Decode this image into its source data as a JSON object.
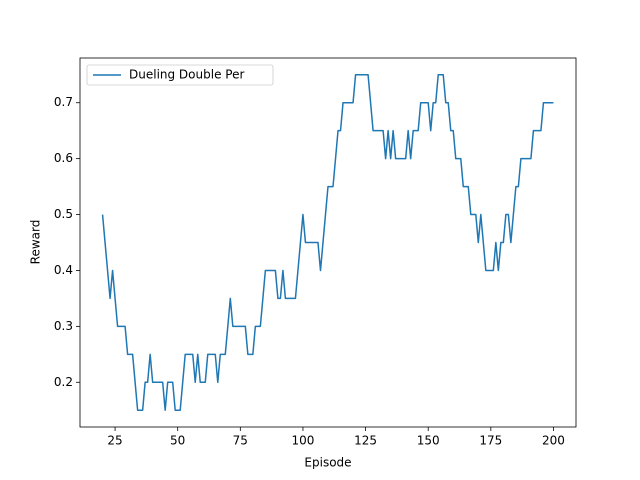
{
  "chart_data": {
    "type": "line",
    "xlabel": "Episode",
    "ylabel": "Reward",
    "x": [
      20,
      21,
      22,
      23,
      24,
      25,
      26,
      27,
      28,
      29,
      30,
      31,
      32,
      33,
      34,
      35,
      36,
      37,
      38,
      39,
      40,
      41,
      42,
      43,
      44,
      45,
      46,
      47,
      48,
      49,
      50,
      51,
      52,
      53,
      54,
      55,
      56,
      57,
      58,
      59,
      60,
      61,
      62,
      63,
      64,
      65,
      66,
      67,
      68,
      69,
      70,
      71,
      72,
      73,
      74,
      75,
      76,
      77,
      78,
      79,
      80,
      81,
      82,
      83,
      84,
      85,
      86,
      87,
      88,
      89,
      90,
      91,
      92,
      93,
      94,
      95,
      96,
      97,
      98,
      99,
      100,
      101,
      102,
      103,
      104,
      105,
      106,
      107,
      108,
      109,
      110,
      111,
      112,
      113,
      114,
      115,
      116,
      117,
      118,
      119,
      120,
      121,
      122,
      123,
      124,
      125,
      126,
      127,
      128,
      129,
      130,
      131,
      132,
      133,
      134,
      135,
      136,
      137,
      138,
      139,
      140,
      141,
      142,
      143,
      144,
      145,
      146,
      147,
      148,
      149,
      150,
      151,
      152,
      153,
      154,
      155,
      156,
      157,
      158,
      159,
      160,
      161,
      162,
      163,
      164,
      165,
      166,
      167,
      168,
      169,
      170,
      171,
      172,
      173,
      174,
      175,
      176,
      177,
      178,
      179,
      180,
      181,
      182,
      183,
      184,
      185,
      186,
      187,
      188,
      189,
      190,
      191,
      192,
      193,
      194,
      195,
      196,
      197,
      198,
      199,
      200
    ],
    "series": [
      {
        "name": "Dueling Double Per",
        "color": "#1f77b4",
        "values": [
          0.5,
          0.45,
          0.4,
          0.35,
          0.4,
          0.35,
          0.3,
          0.3,
          0.3,
          0.3,
          0.25,
          0.25,
          0.25,
          0.2,
          0.15,
          0.15,
          0.15,
          0.2,
          0.2,
          0.25,
          0.2,
          0.2,
          0.2,
          0.2,
          0.2,
          0.15,
          0.2,
          0.2,
          0.2,
          0.15,
          0.15,
          0.15,
          0.2,
          0.25,
          0.25,
          0.25,
          0.25,
          0.2,
          0.25,
          0.2,
          0.2,
          0.2,
          0.25,
          0.25,
          0.25,
          0.25,
          0.2,
          0.25,
          0.25,
          0.25,
          0.3,
          0.35,
          0.3,
          0.3,
          0.3,
          0.3,
          0.3,
          0.3,
          0.25,
          0.25,
          0.25,
          0.3,
          0.3,
          0.3,
          0.35,
          0.4,
          0.4,
          0.4,
          0.4,
          0.4,
          0.35,
          0.35,
          0.4,
          0.35,
          0.35,
          0.35,
          0.35,
          0.35,
          0.4,
          0.45,
          0.5,
          0.45,
          0.45,
          0.45,
          0.45,
          0.45,
          0.45,
          0.4,
          0.45,
          0.5,
          0.55,
          0.55,
          0.55,
          0.6,
          0.65,
          0.65,
          0.7,
          0.7,
          0.7,
          0.7,
          0.7,
          0.75,
          0.75,
          0.75,
          0.75,
          0.75,
          0.75,
          0.7,
          0.65,
          0.65,
          0.65,
          0.65,
          0.65,
          0.6,
          0.65,
          0.6,
          0.65,
          0.6,
          0.6,
          0.6,
          0.6,
          0.6,
          0.65,
          0.6,
          0.65,
          0.65,
          0.65,
          0.7,
          0.7,
          0.7,
          0.7,
          0.65,
          0.7,
          0.7,
          0.75,
          0.75,
          0.75,
          0.7,
          0.7,
          0.65,
          0.65,
          0.6,
          0.6,
          0.6,
          0.55,
          0.55,
          0.55,
          0.5,
          0.5,
          0.5,
          0.45,
          0.5,
          0.45,
          0.4,
          0.4,
          0.4,
          0.4,
          0.45,
          0.4,
          0.45,
          0.45,
          0.5,
          0.5,
          0.45,
          0.5,
          0.55,
          0.55,
          0.6,
          0.6,
          0.6,
          0.6,
          0.6,
          0.65,
          0.65,
          0.65,
          0.65,
          0.7,
          0.7,
          0.7,
          0.7,
          0.7
        ]
      }
    ],
    "xlim": [
      11,
      209
    ],
    "ylim": [
      0.12,
      0.78
    ],
    "xticks": [
      25,
      50,
      75,
      100,
      125,
      150,
      175,
      200
    ],
    "yticks": [
      0.2,
      0.3,
      0.4,
      0.5,
      0.6,
      0.7
    ],
    "legend": "upper left"
  }
}
